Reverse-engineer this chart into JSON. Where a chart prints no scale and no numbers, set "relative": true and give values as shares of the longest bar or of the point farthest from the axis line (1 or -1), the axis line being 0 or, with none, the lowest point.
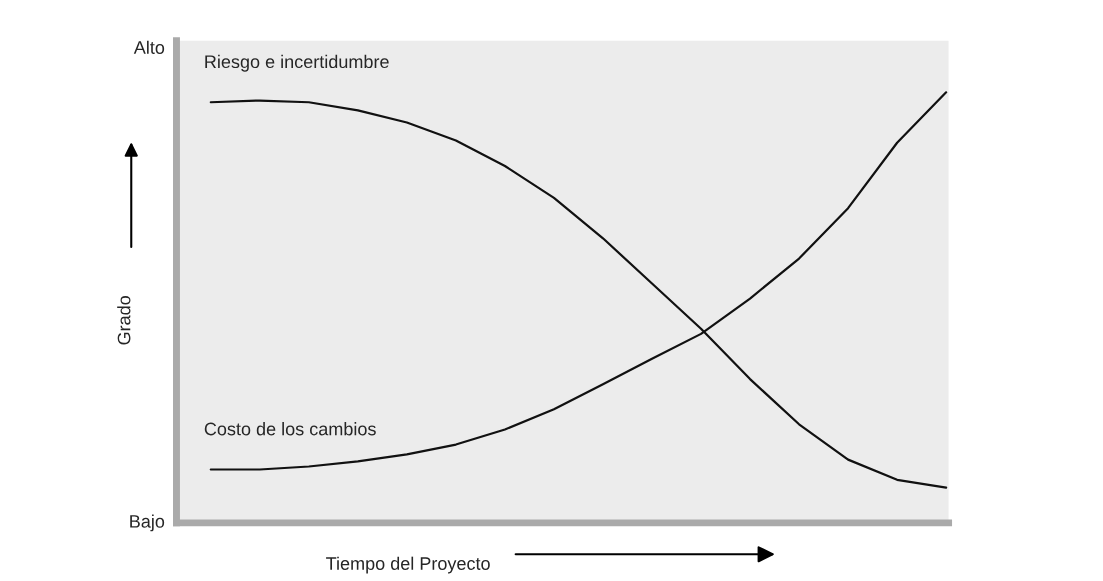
{
  "chart_data": {
    "type": "line",
    "relative": true,
    "xlabel": "Tiempo del Proyecto",
    "ylabel": "Grado",
    "legend": false,
    "marker": "none",
    "line_style": "solid",
    "categories": [
      null,
      null,
      null,
      null,
      null,
      null,
      null,
      null,
      null,
      null,
      null,
      null,
      null,
      null,
      null,
      null
    ],
    "series": [
      {
        "name": "Riesgo e incertidumbre",
        "color": "#111111",
        "values": [
          0.977,
          0.981,
          0.977,
          0.958,
          0.93,
          0.888,
          0.829,
          0.755,
          0.661,
          0.556,
          0.451,
          0.334,
          0.229,
          0.147,
          0.1,
          0.082
        ]
      },
      {
        "name": "Costo de los cambios",
        "color": "#111111",
        "values": [
          0.124,
          0.124,
          0.131,
          0.143,
          0.159,
          0.182,
          0.217,
          0.264,
          0.322,
          0.381,
          0.439,
          0.521,
          0.614,
          0.731,
          0.883,
          1.0
        ]
      }
    ],
    "annotations": [
      "Alto",
      "Bajo"
    ]
  }
}
